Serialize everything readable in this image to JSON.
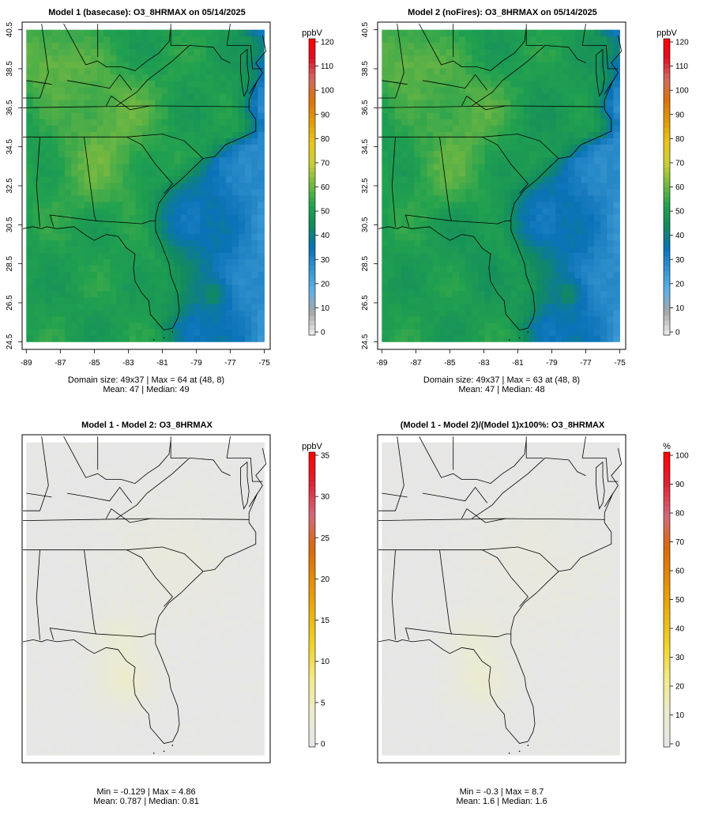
{
  "panels": [
    {
      "title": "Model 1 (basecase): O3_8HRMAX on 05/14/2025",
      "stats": [
        "Domain size: 49x37 | Max = 64 at (48, 8)",
        "Mean: 47 |  Median: 49"
      ],
      "units": "ppbV",
      "field": "base"
    },
    {
      "title": "Model 2 (noFires): O3_8HRMAX on 05/14/2025",
      "stats": [
        "Domain size: 49x37 | Max = 63 at (48, 8)",
        "Mean: 47 |  Median: 48"
      ],
      "units": "ppbV",
      "field": "nofire"
    },
    {
      "title": "Model 1 - Model 2: O3_8HRMAX",
      "stats": [
        "Min = -0.129 | Max = 4.86",
        "Mean: 0.787 |  Median: 0.81"
      ],
      "units": "ppbV",
      "field": "diff"
    },
    {
      "title": "(Model 1 - Model 2)/(Model 1)x100%: O3_8HRMAX",
      "stats": [
        "Min = -0.3 | Max = 8.7",
        "Mean: 1.6 |  Median: 1.6"
      ],
      "units": "%",
      "field": "pct"
    }
  ],
  "chart_data": [
    {
      "type": "heatmap",
      "title": "Model 1 (basecase): O3_8HRMAX on 05/14/2025",
      "grid": [
        49,
        37
      ],
      "units": "ppbV",
      "xlim": [
        -89,
        -75
      ],
      "ylim": [
        24.5,
        40.5
      ],
      "xticks": [
        -89,
        -87,
        -85,
        -83,
        -81,
        -79,
        -77,
        -75
      ],
      "yticks": [
        24.5,
        26.5,
        28.5,
        30.5,
        32.5,
        34.5,
        36.5,
        38.5,
        40.5
      ],
      "colorbar_ticks": [
        0,
        10,
        20,
        30,
        40,
        50,
        60,
        70,
        80,
        90,
        100,
        110,
        120
      ],
      "colorbar_range": [
        0,
        120
      ],
      "max": 64,
      "max_at": [
        48,
        8
      ],
      "mean": 47,
      "median": 49
    },
    {
      "type": "heatmap",
      "title": "Model 2 (noFires): O3_8HRMAX on 05/14/2025",
      "grid": [
        49,
        37
      ],
      "units": "ppbV",
      "xlim": [
        -89,
        -75
      ],
      "ylim": [
        24.5,
        40.5
      ],
      "xticks": [
        -89,
        -87,
        -85,
        -83,
        -81,
        -79,
        -77,
        -75
      ],
      "yticks": [
        24.5,
        26.5,
        28.5,
        30.5,
        32.5,
        34.5,
        36.5,
        38.5,
        40.5
      ],
      "colorbar_ticks": [
        0,
        10,
        20,
        30,
        40,
        50,
        60,
        70,
        80,
        90,
        100,
        110,
        120
      ],
      "colorbar_range": [
        0,
        120
      ],
      "max": 63,
      "max_at": [
        48,
        8
      ],
      "mean": 47,
      "median": 48
    },
    {
      "type": "heatmap",
      "title": "Model 1 - Model 2: O3_8HRMAX",
      "units": "ppbV",
      "colorbar_ticks": [
        0,
        5,
        10,
        15,
        20,
        25,
        30,
        35
      ],
      "colorbar_range": [
        0,
        35
      ],
      "min": -0.129,
      "max": 4.86,
      "mean": 0.787,
      "median": 0.81
    },
    {
      "type": "heatmap",
      "title": "(Model 1 - Model 2)/(Model 1)x100%: O3_8HRMAX",
      "units": "%",
      "colorbar_ticks": [
        0,
        10,
        20,
        30,
        40,
        50,
        60,
        70,
        80,
        90,
        100
      ],
      "colorbar_range": [
        0,
        100
      ],
      "min": -0.3,
      "max": 8.7,
      "mean": 1.6,
      "median": 1.6
    }
  ],
  "colors": {
    "ozone_ramp": [
      "#e6e6e6",
      "#a6a6a6",
      "#5fb0e6",
      "#3594cf",
      "#0a72b8",
      "#118a5f",
      "#21a14f",
      "#72b842",
      "#c9cf36",
      "#e8c51b",
      "#e09a07",
      "#d9730b",
      "#cf6b63",
      "#e00f23",
      "#ff0000"
    ],
    "diff_ramp": [
      "#e6e6e6",
      "#ecebcf",
      "#f2eb8a",
      "#f0d52a",
      "#eab310",
      "#e48d05",
      "#d66a0d",
      "#cf6b7a",
      "#e02030",
      "#ff0000"
    ],
    "frame": "#000000"
  }
}
